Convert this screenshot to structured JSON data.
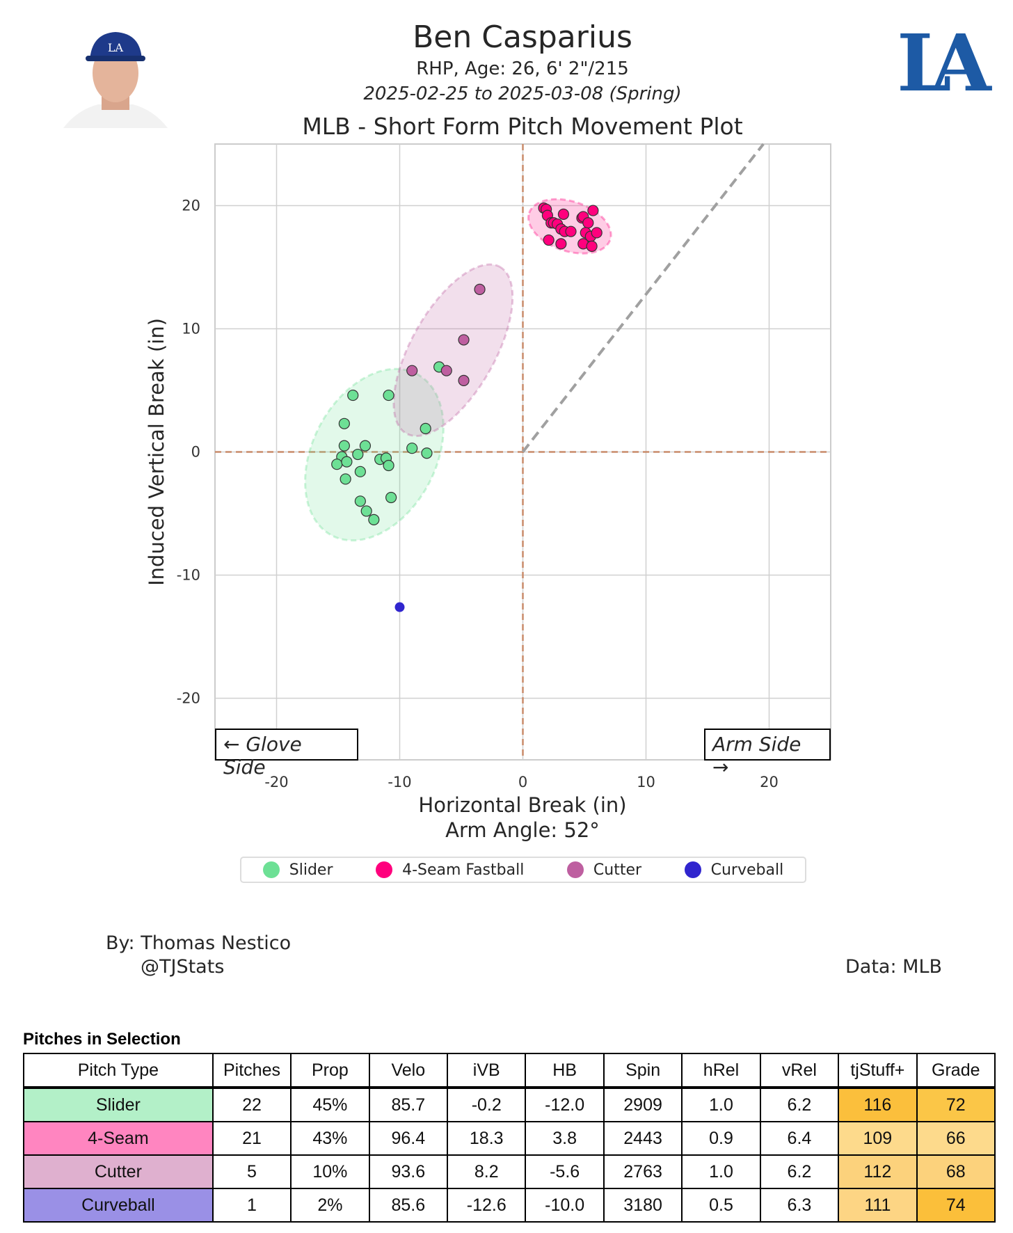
{
  "header": {
    "player_name": "Ben Casparius",
    "bio": "RHP, Age: 26, 6' 2\"/215",
    "date_range": "2025-02-25 to 2025-03-08 (Spring)",
    "plot_title": "MLB - Short Form Pitch Movement Plot",
    "team_logo_text": "LA"
  },
  "chart_data": {
    "type": "scatter",
    "title": "MLB - Short Form Pitch Movement Plot",
    "xlabel": "Horizontal Break (in)",
    "ylabel": "Induced Vertical Break (in)",
    "subxlabel": "Arm Angle: 52°",
    "arm_angle_deg": 52,
    "xlim": [
      -25,
      25
    ],
    "ylim": [
      -25,
      25
    ],
    "xticks": [
      -20,
      -10,
      0,
      10,
      20
    ],
    "yticks": [
      -20,
      -10,
      0,
      10,
      20
    ],
    "grid": true,
    "legend_position": "bottom-center",
    "annotations": {
      "glove_side": "← Glove Side",
      "arm_side": "Arm Side →"
    },
    "series": [
      {
        "name": "Slider",
        "color": "#6de095",
        "ellipse": true,
        "points": [
          [
            -13.8,
            4.6
          ],
          [
            -10.9,
            4.6
          ],
          [
            -6.8,
            6.9
          ],
          [
            -14.5,
            2.3
          ],
          [
            -7.9,
            1.9
          ],
          [
            -14.5,
            0.5
          ],
          [
            -12.8,
            0.5
          ],
          [
            -9.0,
            0.3
          ],
          [
            -7.8,
            -0.1
          ],
          [
            -13.4,
            -0.2
          ],
          [
            -14.7,
            -0.4
          ],
          [
            -15.1,
            -1.0
          ],
          [
            -14.3,
            -0.8
          ],
          [
            -11.6,
            -0.6
          ],
          [
            -11.1,
            -0.5
          ],
          [
            -10.9,
            -1.1
          ],
          [
            -13.2,
            -1.6
          ],
          [
            -14.4,
            -2.2
          ],
          [
            -10.7,
            -3.7
          ],
          [
            -13.2,
            -4.0
          ],
          [
            -12.7,
            -4.8
          ],
          [
            -12.1,
            -5.5
          ]
        ]
      },
      {
        "name": "4-Seam Fastball",
        "color": "#ff007d",
        "ellipse": true,
        "points": [
          [
            1.7,
            19.8
          ],
          [
            1.9,
            19.7
          ],
          [
            2.0,
            19.2
          ],
          [
            2.3,
            18.6
          ],
          [
            2.5,
            18.6
          ],
          [
            2.8,
            18.5
          ],
          [
            3.3,
            19.3
          ],
          [
            3.1,
            18.1
          ],
          [
            3.4,
            17.9
          ],
          [
            3.9,
            17.9
          ],
          [
            4.8,
            19.0
          ],
          [
            4.9,
            19.1
          ],
          [
            5.3,
            18.6
          ],
          [
            5.1,
            17.8
          ],
          [
            5.5,
            17.5
          ],
          [
            5.7,
            19.6
          ],
          [
            6.0,
            17.8
          ],
          [
            4.9,
            16.9
          ],
          [
            5.6,
            16.7
          ],
          [
            2.1,
            17.2
          ],
          [
            3.1,
            16.9
          ]
        ]
      },
      {
        "name": "Cutter",
        "color": "#be5fa0",
        "ellipse": true,
        "points": [
          [
            -3.5,
            13.2
          ],
          [
            -4.8,
            9.1
          ],
          [
            -9.0,
            6.6
          ],
          [
            -6.2,
            6.6
          ],
          [
            -4.8,
            5.8
          ]
        ]
      },
      {
        "name": "Curveball",
        "color": "#3025ce",
        "ellipse": false,
        "points": [
          [
            -10.0,
            -12.6
          ]
        ]
      }
    ]
  },
  "credits": {
    "by": "By: Thomas Nestico",
    "handle": "@TJStats",
    "source": "Data: MLB"
  },
  "table": {
    "title": "Pitches in Selection",
    "columns": [
      "Pitch Type",
      "Pitches",
      "Prop",
      "Velo",
      "iVB",
      "HB",
      "Spin",
      "hRel",
      "vRel",
      "tjStuff+",
      "Grade"
    ],
    "rows": [
      {
        "cells": [
          "Slider",
          "22",
          "45%",
          "85.7",
          "-0.2",
          "-12.0",
          "2909",
          "1.0",
          "6.2",
          "116",
          "72"
        ],
        "type_color": "#b3f0c8",
        "stuff_color": "#fbbf3c",
        "grade_color": "#fbc647"
      },
      {
        "cells": [
          "4-Seam",
          "21",
          "43%",
          "96.4",
          "18.3",
          "3.8",
          "2443",
          "0.9",
          "6.4",
          "109",
          "66"
        ],
        "type_color": "#ff85c0",
        "stuff_color": "#fdda8c",
        "grade_color": "#fdda8c"
      },
      {
        "cells": [
          "Cutter",
          "5",
          "10%",
          "93.6",
          "8.2",
          "-5.6",
          "2763",
          "1.0",
          "6.2",
          "112",
          "68"
        ],
        "type_color": "#dfb0cf",
        "stuff_color": "#fcd27c",
        "grade_color": "#fcd27c"
      },
      {
        "cells": [
          "Curveball",
          "1",
          "2%",
          "85.6",
          "-12.6",
          "-10.0",
          "3180",
          "0.5",
          "6.3",
          "111",
          "74"
        ],
        "type_color": "#9a90e6",
        "stuff_color": "#fdd584",
        "grade_color": "#fbbf3a"
      }
    ]
  }
}
